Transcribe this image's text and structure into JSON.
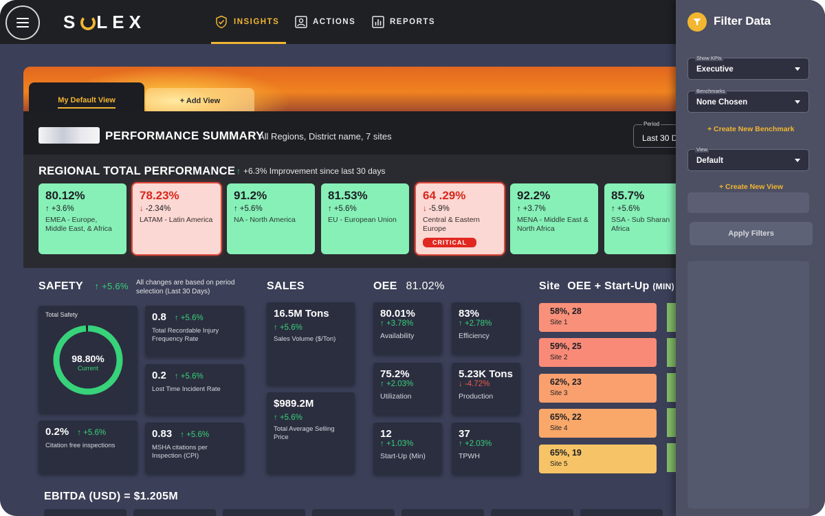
{
  "app": {
    "brand": "SOLEX",
    "nav": [
      {
        "label": "INSIGHTS",
        "icon": "check-shield-icon",
        "active": true
      },
      {
        "label": "ACTIONS",
        "icon": "person-card-icon"
      },
      {
        "label": "REPORTS",
        "icon": "bar-chart-icon"
      }
    ],
    "accent": "#f2b632"
  },
  "views": {
    "default_tab": "My Default View",
    "add_tab": "+  Add View"
  },
  "summary": {
    "title": "PERFORMANCE SUMMARY",
    "subtitle": "All Regions, District name, 7 sites",
    "period_label": "Period",
    "period_value": "Last 30 D"
  },
  "regional": {
    "title": "REGIONAL TOTAL PERFORMANCE",
    "improvement": "+6.3% Improvement since last 30 days",
    "cards": [
      {
        "value": "80.12%",
        "arrow": "↑",
        "change": "+3.6%",
        "region": "EMEA - Europe, Middle East, & Africa",
        "status": "good"
      },
      {
        "value": "78.23%",
        "arrow": "↓",
        "change": "-2.34%",
        "region": "LATAM - Latin America",
        "status": "bad"
      },
      {
        "value": "91.2%",
        "arrow": "↑",
        "change": "+5.6%",
        "region": "NA - North America",
        "status": "good"
      },
      {
        "value": "81.53%",
        "arrow": "↑",
        "change": "+5.6%",
        "region": "EU - European Union",
        "status": "good"
      },
      {
        "value": "64 .29%",
        "arrow": "↓",
        "change": "-5.9%",
        "region": "Central & Eastern Europe",
        "status": "bad",
        "badge": "CRITICAL"
      },
      {
        "value": "92.2%",
        "arrow": "↑",
        "change": "+3.7%",
        "region": "MENA - Middle East & North Africa",
        "status": "good"
      },
      {
        "value": "85.7%",
        "arrow": "↑",
        "change": "+5.6%",
        "region": "SSA - Sub Sharan Africa",
        "status": "good"
      }
    ]
  },
  "safety": {
    "title": "SAFETY",
    "delta": "↑  +5.6%",
    "note": "All changes are based on period selection (Last 30 Days)",
    "total_label": "Total Safety",
    "total_value": "98.80%",
    "total_sub": "Current",
    "total_fraction": 0.988,
    "tiles": [
      {
        "value": "0.8",
        "delta": "↑  +5.6%",
        "label": "Total Recordable Injury Frequency Rate"
      },
      {
        "value": "0.2",
        "delta": "↑  +5.6%",
        "label": "Lost Time Incident Rate"
      },
      {
        "value": "0.2%",
        "delta": "↑  +5.6%",
        "label": "Citation free inspections"
      },
      {
        "value": "0.83",
        "delta": "↑  +5.6%",
        "label": "MSHA citations per Inspection (CPI)"
      }
    ]
  },
  "sales": {
    "title": "SALES",
    "tiles": [
      {
        "value": "16.5M Tons",
        "delta": "↑  +5.6%",
        "label": "Sales Volume ($/Ton)"
      },
      {
        "value": "$989.2M",
        "delta": "↑  +5.6%",
        "label": "Total Average Selling Price"
      }
    ]
  },
  "oee": {
    "title": "OEE",
    "value": "81.02%",
    "tiles": [
      {
        "value": "80.01%",
        "delta": "↑  +3.78%",
        "trend": "up",
        "label": "Availability"
      },
      {
        "value": "83%",
        "delta": "↑  +2.78%",
        "trend": "up",
        "label": "Efficiency"
      },
      {
        "value": "75.2%",
        "delta": "↑  +2.03%",
        "trend": "up",
        "label": "Utilization"
      },
      {
        "value": "5.23K Tons",
        "delta": "↓  -4.72%",
        "trend": "down",
        "label": "Production"
      },
      {
        "value": "12",
        "delta": "↑  +1.03%",
        "trend": "up",
        "label": "Start-Up (Min)"
      },
      {
        "value": "37",
        "delta": "↑  +2.03%",
        "trend": "up",
        "label": "TPWH"
      }
    ]
  },
  "sites": {
    "title_prefix": "Site",
    "title_main": "OEE + Start-Up",
    "title_unit": "(MIN)",
    "items": [
      {
        "value": "58%, 28",
        "name": "Site 1",
        "color": "#f9907a"
      },
      {
        "value": "59%, 25",
        "name": "Site 2",
        "color": "#f98a78"
      },
      {
        "value": "62%, 23",
        "name": "Site 3",
        "color": "#f9a06e"
      },
      {
        "value": "65%, 22",
        "name": "Site 4",
        "color": "#f9a86a"
      },
      {
        "value": "65%, 19",
        "name": "Site 5",
        "color": "#f6c466"
      }
    ]
  },
  "ebitda": {
    "title": "EBITDA (USD) = $1.205M"
  },
  "filter": {
    "title": "Filter Data",
    "show_kpis_label": "Show KPIs",
    "show_kpis_value": "Executive",
    "benchmarks_label": "Benchmarks",
    "benchmarks_value": "None Chosen",
    "create_benchmark": "+ Create New Benchmark",
    "view_label": "View",
    "view_value": "Default",
    "create_view": "+ Create New View",
    "apply": "Apply Filters"
  }
}
